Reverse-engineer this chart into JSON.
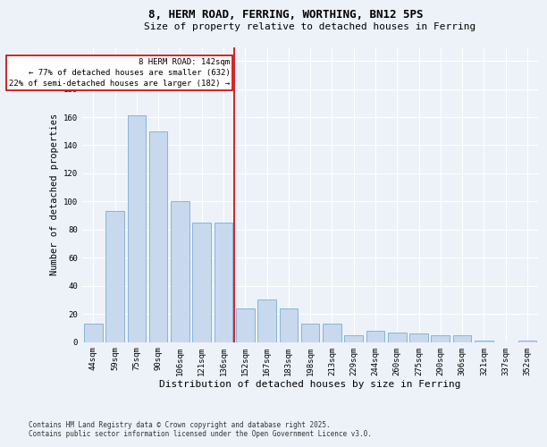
{
  "title_line1": "8, HERM ROAD, FERRING, WORTHING, BN12 5PS",
  "title_line2": "Size of property relative to detached houses in Ferring",
  "xlabel": "Distribution of detached houses by size in Ferring",
  "ylabel": "Number of detached properties",
  "bar_color": "#c8d8ed",
  "bar_edge_color": "#7aadd4",
  "bg_color": "#edf2f9",
  "grid_color": "#ffffff",
  "fig_color": "#edf2f9",
  "categories": [
    "44sqm",
    "59sqm",
    "75sqm",
    "90sqm",
    "106sqm",
    "121sqm",
    "136sqm",
    "152sqm",
    "167sqm",
    "183sqm",
    "198sqm",
    "213sqm",
    "229sqm",
    "244sqm",
    "260sqm",
    "275sqm",
    "290sqm",
    "306sqm",
    "321sqm",
    "337sqm",
    "352sqm"
  ],
  "values": [
    13,
    93,
    161,
    150,
    100,
    85,
    85,
    24,
    30,
    24,
    13,
    13,
    5,
    8,
    7,
    6,
    5,
    5,
    1,
    0,
    1
  ],
  "annotation_line1": "8 HERM ROAD: 142sqm",
  "annotation_line2": "← 77% of detached houses are smaller (632)",
  "annotation_line3": "22% of semi-detached houses are larger (182) →",
  "annotation_box_color": "#ffffff",
  "annotation_box_edge": "#cc0000",
  "vline_color": "#cc0000",
  "footer_line1": "Contains HM Land Registry data © Crown copyright and database right 2025.",
  "footer_line2": "Contains public sector information licensed under the Open Government Licence v3.0.",
  "ylim": [
    0,
    210
  ],
  "yticks": [
    0,
    20,
    40,
    60,
    80,
    100,
    120,
    140,
    160,
    180,
    200
  ],
  "title_fontsize": 9,
  "subtitle_fontsize": 8,
  "xlabel_fontsize": 8,
  "ylabel_fontsize": 7.5,
  "tick_fontsize": 6.5,
  "annot_fontsize": 6.5,
  "footer_fontsize": 5.5
}
